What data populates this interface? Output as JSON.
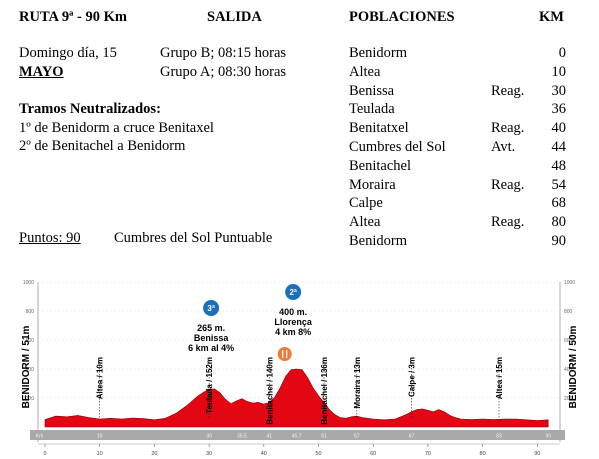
{
  "header": {
    "route_title": "RUTA 9ª -  90 Km",
    "salida_label": "SALIDA",
    "poblaciones_label": "POBLACIONES",
    "km_label": "KM"
  },
  "info": {
    "date": "Domingo día, 15",
    "month": "MAYO",
    "group_b": "Grupo B; 08:15 horas",
    "group_a": "Grupo A; 08:30 horas",
    "neutral_title": "Tramos Neutralizados:",
    "neutral_1": "1º de Benidorm a cruce Benitaxel",
    "neutral_2": "2º de Benitachel a Benidorm",
    "points": "Puntos: 90",
    "points_note": "Cumbres del Sol Puntuable"
  },
  "towns": [
    {
      "name": "Benidorm",
      "note": "",
      "km": "0"
    },
    {
      "name": "Altea",
      "note": "",
      "km": "10"
    },
    {
      "name": "Benissa",
      "note": "Reag.",
      "km": "30"
    },
    {
      "name": "Teulada",
      "note": "",
      "km": "36"
    },
    {
      "name": "Benitatxel",
      "note": "Reag.",
      "km": "40"
    },
    {
      "name": "Cumbres del Sol",
      "note": "Avt.",
      "km": "44"
    },
    {
      "name": "Benitachel",
      "note": "",
      "km": "48"
    },
    {
      "name": "Moraira",
      "note": "Reag.",
      "km": "54"
    },
    {
      "name": "Calpe",
      "note": "",
      "km": "68"
    },
    {
      "name": "Altea",
      "note": "Reag.",
      "km": "80"
    },
    {
      "name": "Benidorm",
      "note": "",
      "km": "90"
    }
  ],
  "profile": {
    "start_label": "BENIDORM / 51m",
    "end_label": "BENIDORM / 50m",
    "fill_color": "#e30613",
    "y_ticks": [
      {
        "v": 200,
        "label": "200"
      },
      {
        "v": 400,
        "label": "400"
      },
      {
        "v": 600,
        "label": "600"
      },
      {
        "v": 800,
        "label": "800"
      },
      {
        "v": 1000,
        "label": "1000"
      }
    ],
    "x_ticks": [
      {
        "v": 0,
        "label": "0"
      },
      {
        "v": 10,
        "label": "10"
      },
      {
        "v": 20,
        "label": "20"
      },
      {
        "v": 30,
        "label": "30"
      },
      {
        "v": 40,
        "label": "40"
      },
      {
        "v": 50,
        "label": "50"
      },
      {
        "v": 60,
        "label": "60"
      },
      {
        "v": 70,
        "label": "70"
      },
      {
        "v": 80,
        "label": "80"
      },
      {
        "v": 90,
        "label": "90"
      }
    ],
    "strip_labels": [
      {
        "km": -1,
        "label": "Km"
      },
      {
        "km": 10,
        "label": "10"
      },
      {
        "km": 30,
        "label": "30"
      },
      {
        "km": 36,
        "label": "35.5"
      },
      {
        "km": 41,
        "label": "41"
      },
      {
        "km": 46,
        "label": "45.7"
      },
      {
        "km": 51,
        "label": "51"
      },
      {
        "km": 57,
        "label": "57"
      },
      {
        "km": 67,
        "label": "67"
      },
      {
        "km": 83,
        "label": "83"
      },
      {
        "km": 92,
        "label": "90"
      }
    ],
    "elevation": [
      [
        0,
        51
      ],
      [
        2,
        75
      ],
      [
        4,
        70
      ],
      [
        6,
        80
      ],
      [
        8,
        65
      ],
      [
        10,
        55
      ],
      [
        12,
        60
      ],
      [
        14,
        55
      ],
      [
        16,
        62
      ],
      [
        18,
        58
      ],
      [
        20,
        50
      ],
      [
        22,
        60
      ],
      [
        24,
        95
      ],
      [
        26,
        150
      ],
      [
        28,
        215
      ],
      [
        29,
        240
      ],
      [
        30,
        262
      ],
      [
        31,
        262
      ],
      [
        32,
        235
      ],
      [
        33,
        190
      ],
      [
        34,
        160
      ],
      [
        35,
        180
      ],
      [
        36,
        195
      ],
      [
        37,
        175
      ],
      [
        38,
        165
      ],
      [
        39,
        170
      ],
      [
        40,
        158
      ],
      [
        41,
        168
      ],
      [
        42,
        205
      ],
      [
        43,
        270
      ],
      [
        44,
        350
      ],
      [
        45,
        395
      ],
      [
        46,
        400
      ],
      [
        47,
        395
      ],
      [
        48,
        340
      ],
      [
        49,
        270
      ],
      [
        50,
        215
      ],
      [
        51,
        170
      ],
      [
        52,
        120
      ],
      [
        53,
        85
      ],
      [
        54,
        65
      ],
      [
        55,
        60
      ],
      [
        56,
        70
      ],
      [
        57,
        75
      ],
      [
        58,
        65
      ],
      [
        60,
        55
      ],
      [
        62,
        50
      ],
      [
        64,
        55
      ],
      [
        66,
        85
      ],
      [
        67,
        105
      ],
      [
        68,
        120
      ],
      [
        69,
        125
      ],
      [
        70,
        115
      ],
      [
        71,
        105
      ],
      [
        72,
        120
      ],
      [
        73,
        105
      ],
      [
        74,
        80
      ],
      [
        75,
        65
      ],
      [
        76,
        55
      ],
      [
        78,
        52
      ],
      [
        80,
        55
      ],
      [
        82,
        52
      ],
      [
        84,
        55
      ],
      [
        86,
        55
      ],
      [
        88,
        50
      ],
      [
        90,
        45
      ],
      [
        92,
        50
      ]
    ],
    "markers": [
      {
        "km": 10,
        "label": "Altea / 10m"
      },
      {
        "km": 30,
        "label": "Teulada / 152m"
      },
      {
        "km": 41,
        "label": "Benitachel / 140m"
      },
      {
        "km": 51,
        "label": "Benitachel / 136m"
      },
      {
        "km": 57,
        "label": "Moraira / 13m"
      },
      {
        "km": 67,
        "label": "Calpe / 3m"
      },
      {
        "km": 83,
        "label": "Altea / 15m"
      }
    ],
    "climbs": [
      {
        "km": 30,
        "badge": "3ª",
        "line1": "265 m.",
        "line2": "Benissa",
        "line3": "6 km al 4%",
        "badge_color": "#1c6fb8"
      },
      {
        "km": 45,
        "badge": "2ª",
        "line1": "400 m.",
        "line2": "Llorença",
        "line3": "4 km 8%",
        "badge_color": "#1c6fb8"
      }
    ],
    "feed_icon": {
      "km": 44,
      "color": "#f07a3a"
    }
  }
}
